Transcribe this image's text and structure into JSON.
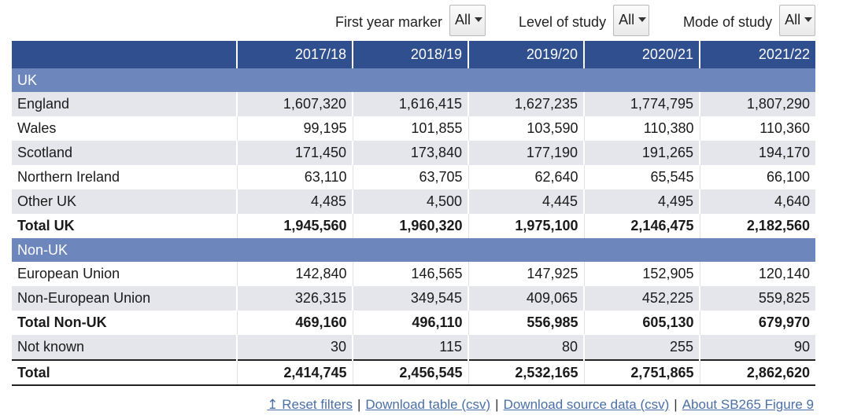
{
  "filters": {
    "first_year_marker": {
      "label": "First year marker",
      "value": "All"
    },
    "level_of_study": {
      "label": "Level of study",
      "value": "All"
    },
    "mode_of_study": {
      "label": "Mode of study",
      "value": "All"
    }
  },
  "table": {
    "columns": [
      "2017/18",
      "2018/19",
      "2019/20",
      "2020/21",
      "2021/22"
    ],
    "groups": {
      "uk": "UK",
      "non_uk": "Non-UK"
    },
    "rows": {
      "england": {
        "label": "England",
        "values": [
          "1,607,320",
          "1,616,415",
          "1,627,235",
          "1,774,795",
          "1,807,290"
        ]
      },
      "wales": {
        "label": "Wales",
        "values": [
          "99,195",
          "101,855",
          "103,590",
          "110,380",
          "110,360"
        ]
      },
      "scotland": {
        "label": "Scotland",
        "values": [
          "171,450",
          "173,840",
          "177,190",
          "191,265",
          "194,170"
        ]
      },
      "northern_ireland": {
        "label": "Northern Ireland",
        "values": [
          "63,110",
          "63,705",
          "62,640",
          "65,545",
          "66,100"
        ]
      },
      "other_uk": {
        "label": "Other UK",
        "values": [
          "4,485",
          "4,500",
          "4,445",
          "4,495",
          "4,640"
        ]
      },
      "total_uk": {
        "label": "Total UK",
        "values": [
          "1,945,560",
          "1,960,320",
          "1,975,100",
          "2,146,475",
          "2,182,560"
        ]
      },
      "european_union": {
        "label": "European Union",
        "values": [
          "142,840",
          "146,565",
          "147,925",
          "152,905",
          "120,140"
        ]
      },
      "non_european_union": {
        "label": "Non-European Union",
        "values": [
          "326,315",
          "349,545",
          "409,065",
          "452,225",
          "559,825"
        ]
      },
      "total_non_uk": {
        "label": "Total Non-UK",
        "values": [
          "469,160",
          "496,110",
          "556,985",
          "605,130",
          "679,970"
        ]
      },
      "not_known": {
        "label": "Not known",
        "values": [
          "30",
          "115",
          "80",
          "255",
          "90"
        ]
      },
      "total": {
        "label": "Total",
        "values": [
          "2,414,745",
          "2,456,545",
          "2,532,165",
          "2,751,865",
          "2,862,620"
        ]
      }
    }
  },
  "footer": {
    "reset_filters": "↥ Reset filters",
    "download_table": "Download table (csv)",
    "download_source": "Download source data (csv)",
    "about": "About SB265 Figure 9",
    "separator": "|"
  },
  "colors": {
    "header_bg": "#2f4f8f",
    "group_bg": "#6d87bd",
    "shade_bg": "#e4e6ec",
    "link": "#4a6fa5"
  }
}
